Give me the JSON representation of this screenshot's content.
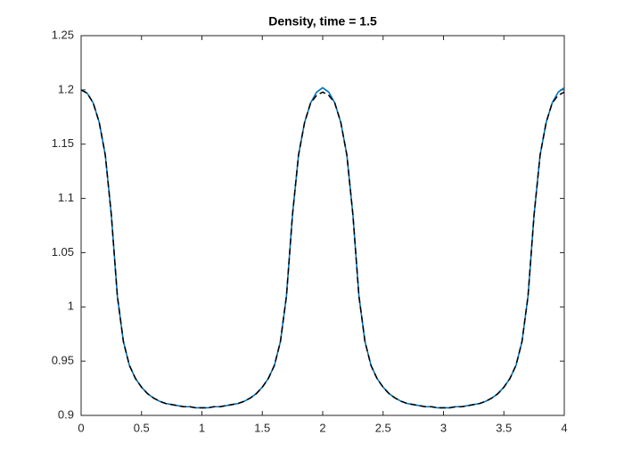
{
  "chart_data": {
    "type": "line",
    "title": "Density, time = 1.5",
    "x": [
      0,
      0.05,
      0.1,
      0.15,
      0.2,
      0.25,
      0.3,
      0.35,
      0.4,
      0.45,
      0.5,
      0.55,
      0.6,
      0.65,
      0.7,
      0.75,
      0.8,
      0.85,
      0.9,
      0.95,
      1,
      1.05,
      1.1,
      1.15,
      1.2,
      1.25,
      1.3,
      1.35,
      1.4,
      1.45,
      1.5,
      1.55,
      1.6,
      1.65,
      1.7,
      1.75,
      1.8,
      1.85,
      1.9,
      1.95,
      2,
      2.05,
      2.1,
      2.15,
      2.2,
      2.25,
      2.3,
      2.35,
      2.4,
      2.45,
      2.5,
      2.55,
      2.6,
      2.65,
      2.7,
      2.75,
      2.8,
      2.85,
      2.9,
      2.95,
      3,
      3.05,
      3.1,
      3.15,
      3.2,
      3.25,
      3.3,
      3.35,
      3.4,
      3.45,
      3.5,
      3.55,
      3.6,
      3.65,
      3.7,
      3.75,
      3.8,
      3.85,
      3.9,
      3.95,
      4
    ],
    "series": [
      {
        "color": "#0072bd",
        "dash": false,
        "values": [
          1.2,
          1.197,
          1.188,
          1.17,
          1.14,
          1.085,
          1.01,
          0.968,
          0.946,
          0.934,
          0.926,
          0.92,
          0.916,
          0.913,
          0.911,
          0.91,
          0.909,
          0.908,
          0.908,
          0.907,
          0.907,
          0.907,
          0.908,
          0.908,
          0.909,
          0.91,
          0.911,
          0.913,
          0.916,
          0.92,
          0.926,
          0.934,
          0.946,
          0.968,
          1.01,
          1.085,
          1.14,
          1.17,
          1.188,
          1.198,
          1.202,
          1.198,
          1.188,
          1.17,
          1.14,
          1.085,
          1.01,
          0.968,
          0.946,
          0.934,
          0.926,
          0.92,
          0.916,
          0.913,
          0.911,
          0.91,
          0.909,
          0.908,
          0.908,
          0.907,
          0.907,
          0.907,
          0.908,
          0.908,
          0.909,
          0.91,
          0.911,
          0.913,
          0.916,
          0.92,
          0.926,
          0.934,
          0.946,
          0.968,
          1.01,
          1.085,
          1.14,
          1.17,
          1.188,
          1.198,
          1.202
        ]
      },
      {
        "color": "#000000",
        "dash": true,
        "values": [
          1.2,
          1.197,
          1.188,
          1.17,
          1.14,
          1.085,
          1.01,
          0.968,
          0.946,
          0.934,
          0.926,
          0.92,
          0.916,
          0.913,
          0.911,
          0.91,
          0.909,
          0.908,
          0.908,
          0.907,
          0.907,
          0.907,
          0.908,
          0.908,
          0.909,
          0.91,
          0.911,
          0.913,
          0.916,
          0.92,
          0.926,
          0.934,
          0.946,
          0.968,
          1.01,
          1.085,
          1.14,
          1.17,
          1.188,
          1.195,
          1.198,
          1.195,
          1.188,
          1.17,
          1.14,
          1.085,
          1.01,
          0.968,
          0.946,
          0.934,
          0.926,
          0.92,
          0.916,
          0.913,
          0.911,
          0.91,
          0.909,
          0.908,
          0.908,
          0.907,
          0.907,
          0.907,
          0.908,
          0.908,
          0.909,
          0.91,
          0.911,
          0.913,
          0.916,
          0.92,
          0.926,
          0.934,
          0.946,
          0.968,
          1.01,
          1.085,
          1.14,
          1.17,
          1.188,
          1.195,
          1.198
        ]
      }
    ],
    "xlim": [
      0,
      4
    ],
    "xticks": [
      0,
      0.5,
      1,
      1.5,
      2,
      2.5,
      3,
      3.5,
      4
    ],
    "ylim": [
      0.9,
      1.25
    ],
    "yticks": [
      0.9,
      0.95,
      1,
      1.05,
      1.1,
      1.15,
      1.2,
      1.25
    ],
    "grid": false
  }
}
